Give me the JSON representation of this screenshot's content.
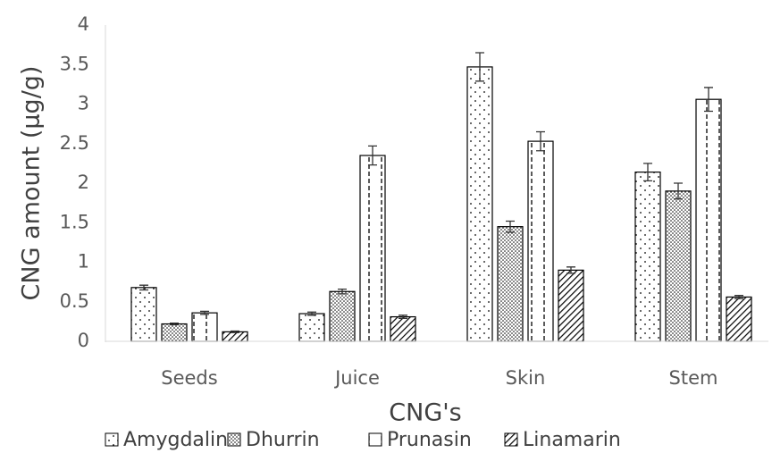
{
  "chart_data": {
    "type": "bar",
    "x_label": "CNG's",
    "y_label": "CNG amount (μg/g)",
    "categories": [
      "Seeds",
      "Juice",
      "Skin",
      "Stem"
    ],
    "series": [
      {
        "name": "Amygdalin",
        "color": "#000000",
        "pattern": "sparse-dots",
        "values": [
          0.68,
          0.35,
          3.47,
          2.14
        ],
        "errors": [
          0.03,
          0.02,
          0.18,
          0.11
        ]
      },
      {
        "name": "Dhurrin",
        "color": "#000000",
        "pattern": "dense-dots",
        "values": [
          0.22,
          0.63,
          1.45,
          1.9
        ],
        "errors": [
          0.01,
          0.03,
          0.07,
          0.1
        ]
      },
      {
        "name": "Prunasin",
        "color": "#000000",
        "pattern": "dashed-vertical",
        "values": [
          0.36,
          2.35,
          2.53,
          3.06
        ],
        "errors": [
          0.02,
          0.12,
          0.12,
          0.15
        ]
      },
      {
        "name": "Linamarin",
        "color": "#000000",
        "pattern": "diagonal",
        "values": [
          0.12,
          0.31,
          0.9,
          0.56
        ],
        "errors": [
          0.01,
          0.02,
          0.04,
          0.02
        ]
      }
    ],
    "ylim": [
      0,
      4
    ],
    "yticks": [
      0,
      0.5,
      1,
      1.5,
      2,
      2.5,
      3,
      3.5,
      4
    ],
    "grid": false,
    "legend": "bottom"
  }
}
